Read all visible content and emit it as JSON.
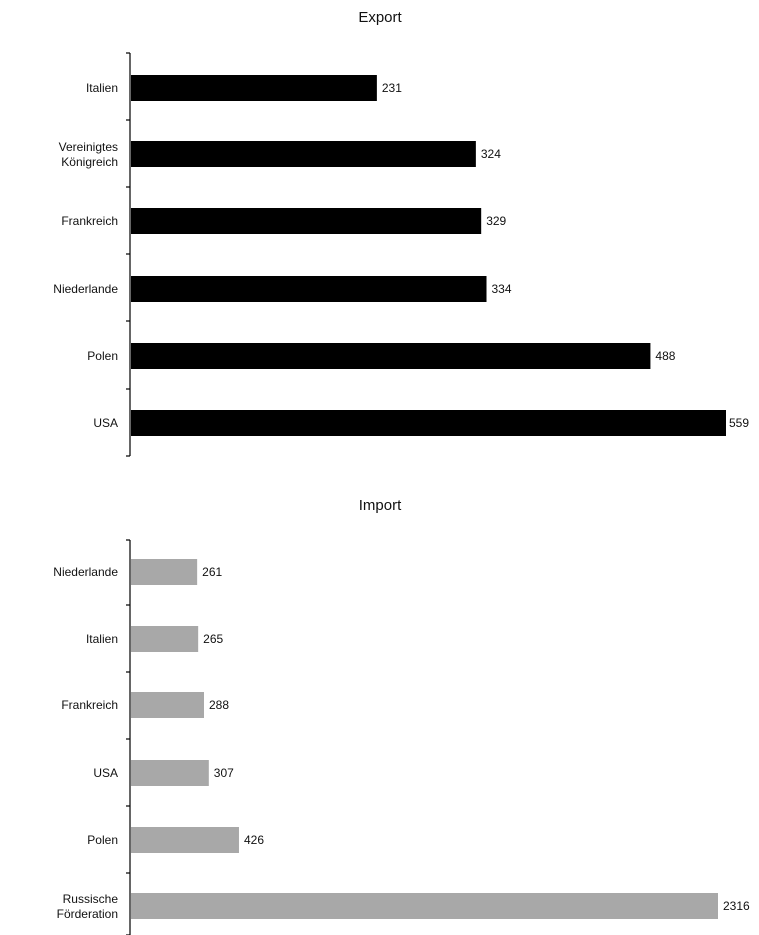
{
  "chart_data": [
    {
      "type": "bar",
      "orientation": "horizontal",
      "title": "Export",
      "categories": [
        "Italien",
        "Vereinigtes Königreich",
        "Frankreich",
        "Niederlande",
        "Polen",
        "USA"
      ],
      "values": [
        231,
        324,
        329,
        334,
        488,
        559
      ],
      "value_labels": [
        "231",
        "324",
        "329",
        "334",
        "488",
        "559"
      ],
      "xlim": [
        0,
        559
      ],
      "color": "#000000",
      "xlabel": "",
      "ylabel": "",
      "grid": false,
      "legend": "none"
    },
    {
      "type": "bar",
      "orientation": "horizontal",
      "title": "Import",
      "categories": [
        "Niederlande",
        "Italien",
        "Frankreich",
        "USA",
        "Polen",
        "Russische Förderation"
      ],
      "values": [
        261,
        265,
        288,
        307,
        426,
        2316
      ],
      "value_labels": [
        "261",
        "265",
        "288",
        "307",
        "426",
        "2316"
      ],
      "xlim": [
        0,
        2316
      ],
      "color": "#a8a8a8",
      "xlabel": "",
      "ylabel": "",
      "grid": false,
      "legend": "none"
    }
  ]
}
